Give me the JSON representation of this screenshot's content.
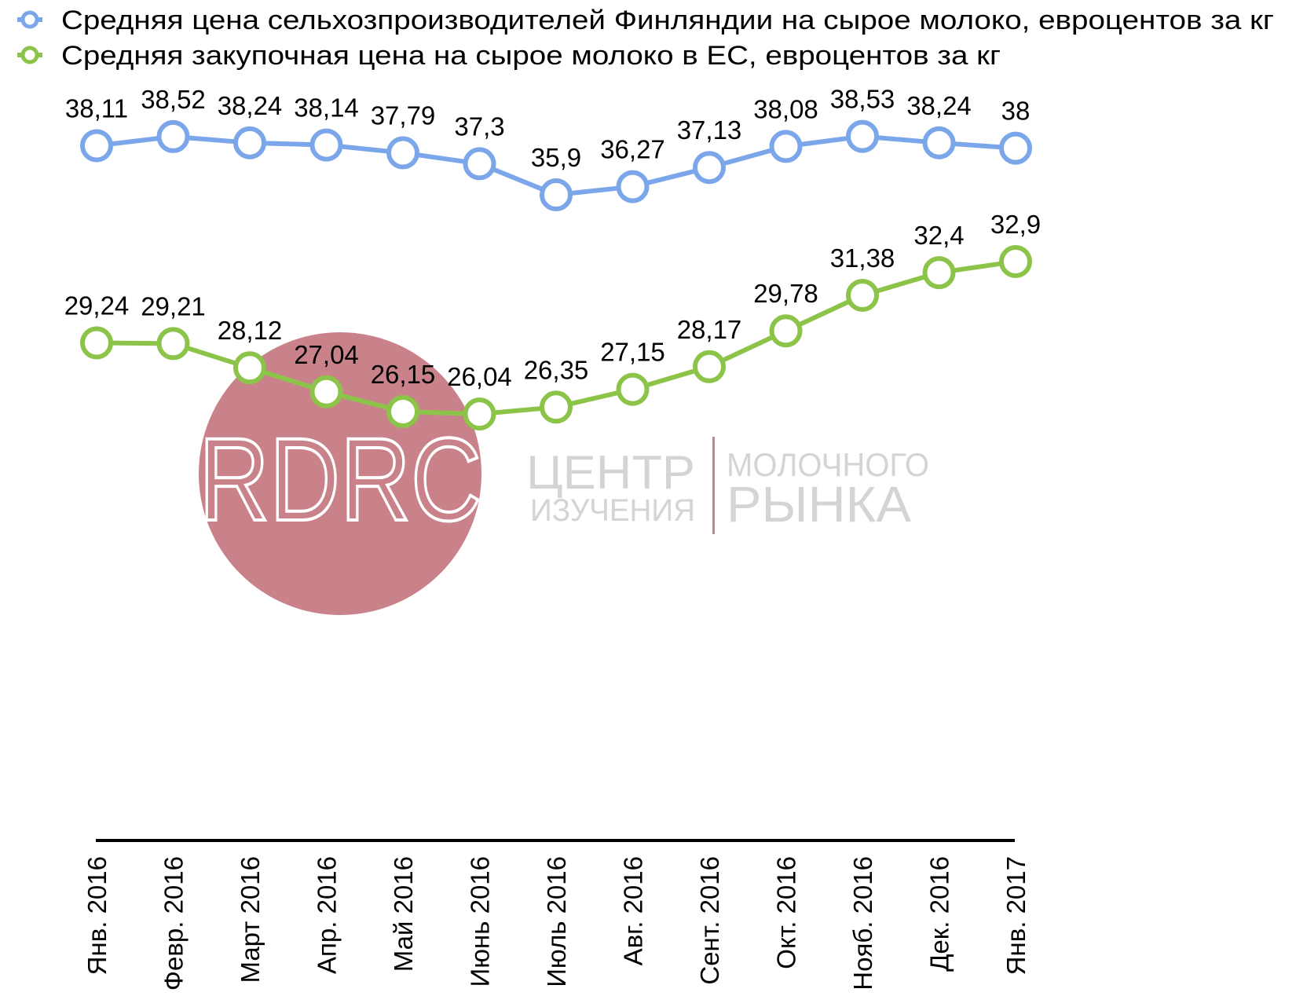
{
  "chart_data": {
    "type": "line",
    "categories": [
      "Янв. 2016",
      "Февр. 2016",
      "Март 2016",
      "Апр. 2016",
      "Май 2016",
      "Июнь 2016",
      "Июль 2016",
      "Авг. 2016",
      "Сент. 2016",
      "Окт. 2016",
      "Нояб. 2016",
      "Дек. 2016",
      "Янв. 2017"
    ],
    "series": [
      {
        "name": "Средняя цена сельхозпроизводителей Финляндии на сырое молоко, евроцентов за кг",
        "color": "#7ba7ea",
        "values": [
          38.11,
          38.52,
          38.24,
          38.14,
          37.79,
          37.3,
          35.9,
          36.27,
          37.13,
          38.08,
          38.53,
          38.24,
          38
        ],
        "labels": [
          "38,11",
          "38,52",
          "38,24",
          "38,14",
          "37,79",
          "37,3",
          "35,9",
          "36,27",
          "37,13",
          "38,08",
          "38,53",
          "38,24",
          "38"
        ]
      },
      {
        "name": "Средняя закупочная цена на сырое молоко в ЕС, евроцентов за кг",
        "color": "#8cc44a",
        "values": [
          29.24,
          29.21,
          28.12,
          27.04,
          26.15,
          26.04,
          26.35,
          27.15,
          28.17,
          29.78,
          31.38,
          32.4,
          32.9
        ],
        "labels": [
          "29,24",
          "29,21",
          "28,12",
          "27,04",
          "26,15",
          "26,04",
          "26,35",
          "27,15",
          "28,17",
          "29,78",
          "31,38",
          "32,4",
          "32,9"
        ]
      }
    ],
    "legend": "top-left",
    "grid": false,
    "value_axis_visible": false,
    "category_label_rotation": -90
  },
  "watermark": {
    "logo_text": "RDRC",
    "line1_left": "ЦЕНТР",
    "line2_left": "ИЗУЧЕНИЯ",
    "line1_right": "МОЛОЧНОГО",
    "line2_right": "РЫНКА",
    "circle_color": "#c9828a",
    "text_color": "#d4d4d4",
    "divider_color": "#c9828a"
  }
}
